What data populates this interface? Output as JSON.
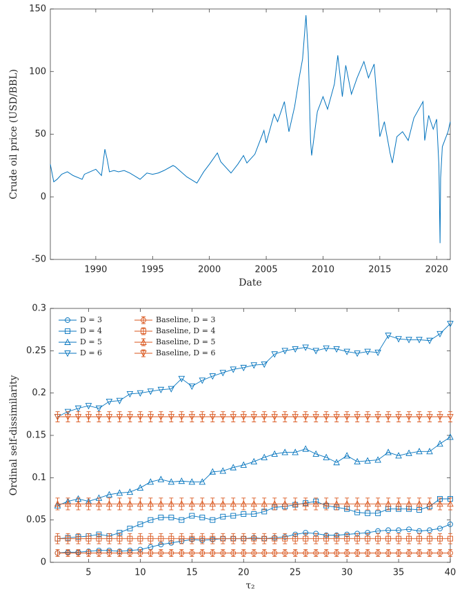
{
  "chart_data": [
    {
      "type": "line",
      "xlabel": "Date",
      "ylabel": "Crude oil price (USD/BBL)",
      "xlim": [
        1986,
        2021.2
      ],
      "xticks": [
        1990,
        1995,
        2000,
        2005,
        2010,
        2015,
        2020
      ],
      "ylim": [
        -50,
        150
      ],
      "yticks": [
        -50,
        0,
        50,
        100,
        150
      ],
      "series": [
        {
          "color": "#0072BD",
          "x": [
            1986.0,
            1986.3,
            1986.6,
            1987.0,
            1987.5,
            1988.0,
            1988.8,
            1989.0,
            1989.5,
            1990.0,
            1990.5,
            1990.8,
            1991.0,
            1991.2,
            1991.6,
            1992.0,
            1992.5,
            1993.0,
            1993.9,
            1994.5,
            1995.0,
            1995.5,
            1996.0,
            1996.8,
            1997.0,
            1997.5,
            1998.0,
            1998.9,
            1999.5,
            2000.0,
            2000.7,
            2001.0,
            2001.9,
            2002.5,
            2003.0,
            2003.3,
            2004.0,
            2004.8,
            2005.0,
            2005.7,
            2006.0,
            2006.6,
            2007.0,
            2007.5,
            2007.9,
            2008.2,
            2008.5,
            2008.7,
            2008.9,
            2009.0,
            2009.5,
            2010.0,
            2010.4,
            2011.0,
            2011.3,
            2011.7,
            2012.0,
            2012.5,
            2013.0,
            2013.6,
            2014.0,
            2014.5,
            2014.9,
            2015.0,
            2015.4,
            2015.9,
            2016.1,
            2016.5,
            2017.0,
            2017.5,
            2018.0,
            2018.8,
            2018.95,
            2019.3,
            2019.7,
            2020.0,
            2020.2,
            2020.3,
            2020.35,
            2020.5,
            2021.0,
            2021.2
          ],
          "values": [
            26,
            12,
            14,
            18,
            20,
            17,
            14,
            18,
            20,
            22,
            17,
            38,
            30,
            20,
            21,
            20,
            21,
            19,
            14,
            19,
            18,
            19,
            21,
            25,
            24,
            20,
            16,
            11,
            20,
            26,
            35,
            28,
            19,
            26,
            33,
            27,
            34,
            53,
            43,
            66,
            60,
            76,
            52,
            72,
            95,
            110,
            145,
            115,
            45,
            33,
            68,
            80,
            70,
            90,
            113,
            80,
            105,
            82,
            95,
            108,
            95,
            106,
            60,
            48,
            60,
            35,
            27,
            48,
            52,
            45,
            63,
            76,
            45,
            65,
            54,
            62,
            25,
            -37,
            15,
            40,
            52,
            60
          ]
        }
      ]
    },
    {
      "type": "line",
      "xlabel": "τ₂",
      "ylabel": "Ordinal self-dissimilarity",
      "xlim": [
        1.3,
        40
      ],
      "xticks": [
        5,
        10,
        15,
        20,
        25,
        30,
        35,
        40
      ],
      "ylim": [
        0,
        0.3
      ],
      "yticks": [
        0,
        0.05,
        0.1,
        0.15,
        0.2,
        0.25,
        0.3
      ],
      "legend": "upper left",
      "x": [
        2,
        3,
        4,
        5,
        6,
        7,
        8,
        9,
        10,
        11,
        12,
        13,
        14,
        15,
        16,
        17,
        18,
        19,
        20,
        21,
        22,
        23,
        24,
        25,
        26,
        27,
        28,
        29,
        30,
        31,
        32,
        33,
        34,
        35,
        36,
        37,
        38,
        39,
        40
      ],
      "series": [
        {
          "name": "D = 3",
          "color": "#0072BD",
          "marker": "circle",
          "values": [
            0.011,
            0.012,
            0.012,
            0.013,
            0.014,
            0.014,
            0.013,
            0.014,
            0.015,
            0.018,
            0.021,
            0.023,
            0.025,
            0.027,
            0.026,
            0.027,
            0.028,
            0.028,
            0.028,
            0.029,
            0.028,
            0.029,
            0.03,
            0.033,
            0.035,
            0.034,
            0.032,
            0.032,
            0.033,
            0.034,
            0.035,
            0.037,
            0.038,
            0.038,
            0.039,
            0.037,
            0.038,
            0.04,
            0.045
          ]
        },
        {
          "name": "D = 4",
          "color": "#0072BD",
          "marker": "square",
          "values": [
            0.028,
            0.029,
            0.03,
            0.031,
            0.033,
            0.031,
            0.035,
            0.04,
            0.045,
            0.05,
            0.053,
            0.053,
            0.05,
            0.055,
            0.053,
            0.05,
            0.054,
            0.055,
            0.057,
            0.057,
            0.06,
            0.065,
            0.066,
            0.068,
            0.07,
            0.072,
            0.067,
            0.065,
            0.063,
            0.059,
            0.058,
            0.058,
            0.063,
            0.063,
            0.063,
            0.062,
            0.066,
            0.075,
            0.075
          ]
        },
        {
          "name": "D = 5",
          "color": "#0072BD",
          "marker": "triangle-up",
          "values": [
            0.067,
            0.072,
            0.075,
            0.072,
            0.076,
            0.08,
            0.082,
            0.083,
            0.088,
            0.095,
            0.098,
            0.095,
            0.096,
            0.095,
            0.095,
            0.107,
            0.108,
            0.112,
            0.115,
            0.119,
            0.124,
            0.128,
            0.13,
            0.13,
            0.134,
            0.128,
            0.124,
            0.118,
            0.126,
            0.119,
            0.12,
            0.121,
            0.13,
            0.126,
            0.129,
            0.131,
            0.131,
            0.14,
            0.148
          ]
        },
        {
          "name": "D = 6",
          "color": "#0072BD",
          "marker": "triangle-down",
          "values": [
            0.172,
            0.178,
            0.182,
            0.185,
            0.182,
            0.19,
            0.191,
            0.199,
            0.2,
            0.202,
            0.204,
            0.205,
            0.217,
            0.208,
            0.215,
            0.22,
            0.224,
            0.228,
            0.23,
            0.233,
            0.234,
            0.246,
            0.25,
            0.252,
            0.254,
            0.25,
            0.253,
            0.252,
            0.249,
            0.247,
            0.249,
            0.248,
            0.268,
            0.264,
            0.263,
            0.263,
            0.262,
            0.27,
            0.282
          ]
        },
        {
          "name": "Baseline, D = 3",
          "color": "#D95319",
          "marker": "circle",
          "values": [
            0.011,
            0.011,
            0.011,
            0.011,
            0.011,
            0.011,
            0.011,
            0.011,
            0.011,
            0.011,
            0.011,
            0.011,
            0.011,
            0.011,
            0.011,
            0.011,
            0.011,
            0.011,
            0.011,
            0.011,
            0.011,
            0.011,
            0.011,
            0.011,
            0.011,
            0.011,
            0.011,
            0.011,
            0.011,
            0.011,
            0.011,
            0.011,
            0.011,
            0.011,
            0.011,
            0.011,
            0.011,
            0.011,
            0.011
          ],
          "errors": [
            0.004,
            0.004,
            0.004,
            0.004,
            0.004,
            0.004,
            0.004,
            0.004,
            0.004,
            0.004,
            0.004,
            0.004,
            0.004,
            0.004,
            0.004,
            0.004,
            0.004,
            0.004,
            0.004,
            0.004,
            0.004,
            0.004,
            0.004,
            0.004,
            0.004,
            0.004,
            0.004,
            0.004,
            0.004,
            0.004,
            0.004,
            0.004,
            0.004,
            0.004,
            0.004,
            0.004,
            0.004,
            0.004,
            0.004
          ]
        },
        {
          "name": "Baseline, D = 4",
          "color": "#D95319",
          "marker": "square",
          "values": [
            0.028,
            0.028,
            0.028,
            0.028,
            0.028,
            0.028,
            0.028,
            0.028,
            0.028,
            0.028,
            0.028,
            0.028,
            0.028,
            0.028,
            0.028,
            0.028,
            0.028,
            0.028,
            0.028,
            0.028,
            0.028,
            0.028,
            0.028,
            0.028,
            0.028,
            0.028,
            0.028,
            0.028,
            0.028,
            0.028,
            0.028,
            0.028,
            0.028,
            0.028,
            0.028,
            0.028,
            0.028,
            0.028,
            0.028
          ],
          "errors": [
            0.006,
            0.006,
            0.006,
            0.006,
            0.006,
            0.006,
            0.006,
            0.006,
            0.006,
            0.006,
            0.006,
            0.006,
            0.006,
            0.006,
            0.006,
            0.006,
            0.006,
            0.006,
            0.006,
            0.006,
            0.006,
            0.006,
            0.006,
            0.006,
            0.006,
            0.006,
            0.006,
            0.006,
            0.006,
            0.006,
            0.006,
            0.006,
            0.006,
            0.006,
            0.006,
            0.006,
            0.006,
            0.006,
            0.006
          ]
        },
        {
          "name": "Baseline, D = 5",
          "color": "#D95319",
          "marker": "triangle-up",
          "values": [
            0.069,
            0.069,
            0.069,
            0.069,
            0.069,
            0.069,
            0.069,
            0.069,
            0.069,
            0.069,
            0.069,
            0.069,
            0.069,
            0.069,
            0.069,
            0.069,
            0.069,
            0.069,
            0.069,
            0.069,
            0.069,
            0.069,
            0.069,
            0.069,
            0.069,
            0.069,
            0.069,
            0.069,
            0.069,
            0.069,
            0.069,
            0.069,
            0.069,
            0.069,
            0.069,
            0.069,
            0.069,
            0.069,
            0.069
          ],
          "errors": [
            0.007,
            0.007,
            0.007,
            0.007,
            0.007,
            0.007,
            0.007,
            0.007,
            0.007,
            0.007,
            0.007,
            0.007,
            0.007,
            0.007,
            0.007,
            0.007,
            0.007,
            0.007,
            0.007,
            0.007,
            0.007,
            0.007,
            0.007,
            0.007,
            0.007,
            0.007,
            0.007,
            0.007,
            0.007,
            0.007,
            0.007,
            0.007,
            0.007,
            0.007,
            0.007,
            0.007,
            0.007,
            0.007,
            0.007
          ]
        },
        {
          "name": "Baseline, D = 6",
          "color": "#D95319",
          "marker": "triangle-down",
          "values": [
            0.172,
            0.172,
            0.172,
            0.172,
            0.172,
            0.172,
            0.172,
            0.172,
            0.172,
            0.172,
            0.172,
            0.172,
            0.172,
            0.172,
            0.172,
            0.172,
            0.172,
            0.172,
            0.172,
            0.172,
            0.172,
            0.172,
            0.172,
            0.172,
            0.172,
            0.172,
            0.172,
            0.172,
            0.172,
            0.172,
            0.172,
            0.172,
            0.172,
            0.172,
            0.172,
            0.172,
            0.172,
            0.172,
            0.172
          ],
          "errors": [
            0.006,
            0.006,
            0.006,
            0.006,
            0.006,
            0.006,
            0.006,
            0.006,
            0.006,
            0.006,
            0.006,
            0.006,
            0.006,
            0.006,
            0.006,
            0.006,
            0.006,
            0.006,
            0.006,
            0.006,
            0.006,
            0.006,
            0.006,
            0.006,
            0.006,
            0.006,
            0.006,
            0.006,
            0.006,
            0.006,
            0.006,
            0.006,
            0.006,
            0.006,
            0.006,
            0.006,
            0.006,
            0.006,
            0.006
          ]
        }
      ]
    }
  ]
}
